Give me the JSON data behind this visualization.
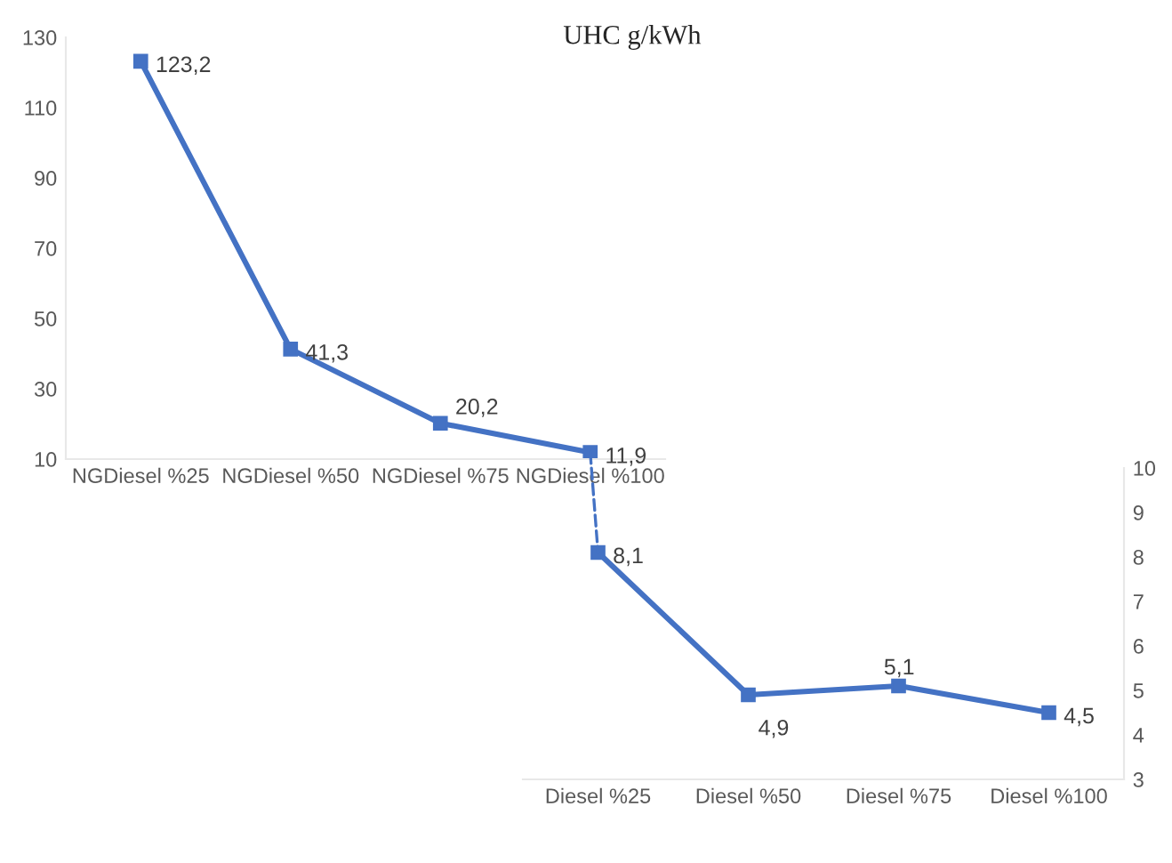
{
  "chart_data": [
    {
      "type": "line",
      "title": "UHC g/kWh",
      "categories": [
        "NGDiesel %25",
        "NGDiesel %50",
        "NGDiesel %75",
        "NGDiesel %100"
      ],
      "series": [
        {
          "color": "#4472c4",
          "values": [
            123.2,
            41.3,
            20.2,
            11.9
          ],
          "value_labels": [
            "123,2",
            "41,3",
            "20,2",
            "11,9"
          ]
        }
      ],
      "ylim": [
        10,
        130
      ],
      "yticks": [
        10,
        30,
        50,
        70,
        90,
        110,
        130
      ],
      "marker": "square",
      "line_style": "solid",
      "grid": false,
      "legend": false
    },
    {
      "type": "line",
      "categories": [
        "Diesel %25",
        "Diesel %50",
        "Diesel %75",
        "Diesel %100"
      ],
      "series": [
        {
          "color": "#4472c4",
          "values": [
            8.1,
            4.9,
            5.1,
            4.5
          ],
          "value_labels": [
            "8,1",
            "4,9",
            "5,1",
            "4,5"
          ]
        }
      ],
      "ylim": [
        3,
        10
      ],
      "yticks": [
        3,
        4,
        5,
        6,
        7,
        8,
        9,
        10
      ],
      "marker": "square",
      "line_style": "solid",
      "grid": false,
      "legend": false
    }
  ]
}
